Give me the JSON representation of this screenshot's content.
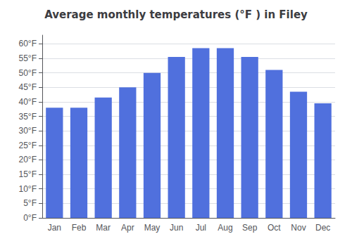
{
  "chart_data": {
    "type": "bar",
    "title": "Average monthly temperatures (°F ) in Filey",
    "categories": [
      "Jan",
      "Feb",
      "Mar",
      "Apr",
      "May",
      "Jun",
      "Jul",
      "Aug",
      "Sep",
      "Oct",
      "Nov",
      "Dec"
    ],
    "values": [
      38,
      38,
      41.5,
      45,
      50,
      55.5,
      58.5,
      58.5,
      55.5,
      51,
      43.5,
      39.5
    ],
    "ylim": [
      0,
      63
    ],
    "yticks": [
      {
        "value": 0,
        "label": "0°F"
      },
      {
        "value": 5,
        "label": "5°F"
      },
      {
        "value": 10,
        "label": "10°F"
      },
      {
        "value": 15,
        "label": "15°F"
      },
      {
        "value": 20,
        "label": "20°F"
      },
      {
        "value": 25,
        "label": "25°F"
      },
      {
        "value": 30,
        "label": "30°F"
      },
      {
        "value": 35,
        "label": "35°F"
      },
      {
        "value": 40,
        "label": "40°F"
      },
      {
        "value": 45,
        "label": "45°F"
      },
      {
        "value": 50,
        "label": "50°F"
      },
      {
        "value": 55,
        "label": "55°F"
      },
      {
        "value": 60,
        "label": "60°F"
      }
    ],
    "grid": true
  }
}
